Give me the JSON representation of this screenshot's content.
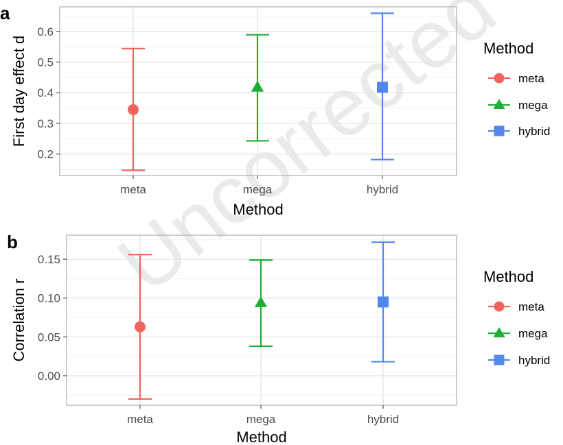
{
  "watermark": "Uncorrected",
  "legend_colors": {
    "meta": "#F0635E",
    "mega": "#1FAE35",
    "hybrid": "#5288EE"
  },
  "chart_data": [
    {
      "panel": "a",
      "type": "scatter",
      "xlabel": "Method",
      "ylabel": "First day effect d",
      "categories": [
        "meta",
        "mega",
        "hybrid"
      ],
      "yticks": [
        0.2,
        0.3,
        0.4,
        0.5,
        0.6
      ],
      "ytick_labels": [
        "0.2",
        "0.3",
        "0.4",
        "0.5",
        "0.6"
      ],
      "ylim": [
        0.13,
        0.68
      ],
      "points": [
        {
          "x": "meta",
          "y": 0.345,
          "lower": 0.147,
          "upper": 0.544,
          "shape": "circle"
        },
        {
          "x": "mega",
          "y": 0.418,
          "lower": 0.243,
          "upper": 0.589,
          "shape": "triangle"
        },
        {
          "x": "hybrid",
          "y": 0.418,
          "lower": 0.182,
          "upper": 0.659,
          "shape": "square"
        }
      ],
      "legend": {
        "title": "Method",
        "entries": [
          "meta",
          "mega",
          "hybrid"
        ],
        "position": "right"
      },
      "grid": true
    },
    {
      "panel": "b",
      "type": "scatter",
      "xlabel": "Method",
      "ylabel": "Correlation r",
      "categories": [
        "meta",
        "mega",
        "hybrid"
      ],
      "yticks": [
        0.0,
        0.05,
        0.1,
        0.15
      ],
      "ytick_labels": [
        "0.00",
        "0.05",
        "0.10",
        "0.15"
      ],
      "ylim": [
        -0.038,
        0.181
      ],
      "points": [
        {
          "x": "meta",
          "y": 0.063,
          "lower": -0.03,
          "upper": 0.156,
          "shape": "circle"
        },
        {
          "x": "mega",
          "y": 0.094,
          "lower": 0.038,
          "upper": 0.149,
          "shape": "triangle"
        },
        {
          "x": "hybrid",
          "y": 0.095,
          "lower": 0.018,
          "upper": 0.172,
          "shape": "square"
        }
      ],
      "legend": {
        "title": "Method",
        "entries": [
          "meta",
          "mega",
          "hybrid"
        ],
        "position": "right"
      },
      "grid": true
    }
  ]
}
